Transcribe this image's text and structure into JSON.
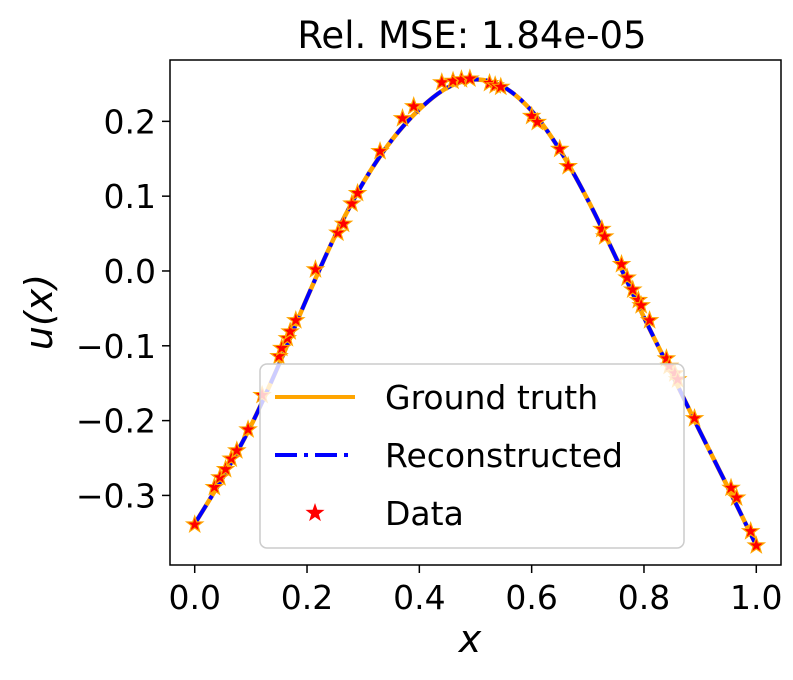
{
  "chart_data": {
    "type": "line",
    "title": "Rel. MSE: 1.84e-05",
    "xlabel": "x",
    "ylabel": "u(x)",
    "xlim": [
      -0.044,
      1.044
    ],
    "ylim": [
      -0.393,
      0.282
    ],
    "xticks": [
      0.0,
      0.2,
      0.4,
      0.6,
      0.8,
      1.0
    ],
    "xtick_labels": [
      "0.0",
      "0.2",
      "0.4",
      "0.6",
      "0.8",
      "1.0"
    ],
    "yticks": [
      -0.3,
      -0.2,
      -0.1,
      0.0,
      0.1,
      0.2
    ],
    "ytick_labels": [
      "−0.3",
      "−0.2",
      "−0.1",
      "0.0",
      "0.1",
      "0.2"
    ],
    "grid": false,
    "legend_position": "lower-center",
    "legend": [
      {
        "label": "Ground truth",
        "color": "#FFA500",
        "style": "solid"
      },
      {
        "label": "Reconstructed",
        "color": "#0000FF",
        "style": "dashdot"
      },
      {
        "label": "Data",
        "color": "#FF0000",
        "style": "star-marker"
      }
    ],
    "curve_x": [
      0.0,
      0.05,
      0.1,
      0.15,
      0.2,
      0.25,
      0.3,
      0.35,
      0.4,
      0.45,
      0.5,
      0.55,
      0.6,
      0.65,
      0.7,
      0.75,
      0.8,
      0.85,
      0.9,
      0.95,
      1.0
    ],
    "curve_y": [
      -0.338,
      -0.276,
      -0.207,
      -0.125,
      -0.036,
      0.047,
      0.118,
      0.174,
      0.216,
      0.245,
      0.256,
      0.246,
      0.214,
      0.162,
      0.095,
      0.018,
      -0.062,
      -0.138,
      -0.215,
      -0.29,
      -0.367
    ],
    "data_x": [
      0.0,
      0.035,
      0.045,
      0.055,
      0.065,
      0.075,
      0.095,
      0.12,
      0.15,
      0.155,
      0.165,
      0.17,
      0.18,
      0.215,
      0.255,
      0.265,
      0.28,
      0.29,
      0.33,
      0.37,
      0.39,
      0.44,
      0.46,
      0.475,
      0.49,
      0.525,
      0.535,
      0.545,
      0.6,
      0.61,
      0.65,
      0.665,
      0.725,
      0.73,
      0.76,
      0.77,
      0.78,
      0.79,
      0.795,
      0.81,
      0.84,
      0.845,
      0.855,
      0.86,
      0.89,
      0.955,
      0.965,
      0.99,
      1.0
    ],
    "data_y": [
      -0.339,
      -0.289,
      -0.276,
      -0.265,
      -0.251,
      -0.24,
      -0.212,
      -0.166,
      -0.114,
      -0.103,
      -0.09,
      -0.081,
      -0.066,
      0.002,
      0.051,
      0.063,
      0.09,
      0.104,
      0.16,
      0.204,
      0.22,
      0.252,
      0.254,
      0.256,
      0.257,
      0.251,
      0.248,
      0.246,
      0.207,
      0.199,
      0.163,
      0.14,
      0.056,
      0.046,
      0.009,
      -0.009,
      -0.025,
      -0.039,
      -0.046,
      -0.066,
      -0.117,
      -0.127,
      -0.137,
      -0.145,
      -0.197,
      -0.29,
      -0.303,
      -0.348,
      -0.367
    ]
  }
}
